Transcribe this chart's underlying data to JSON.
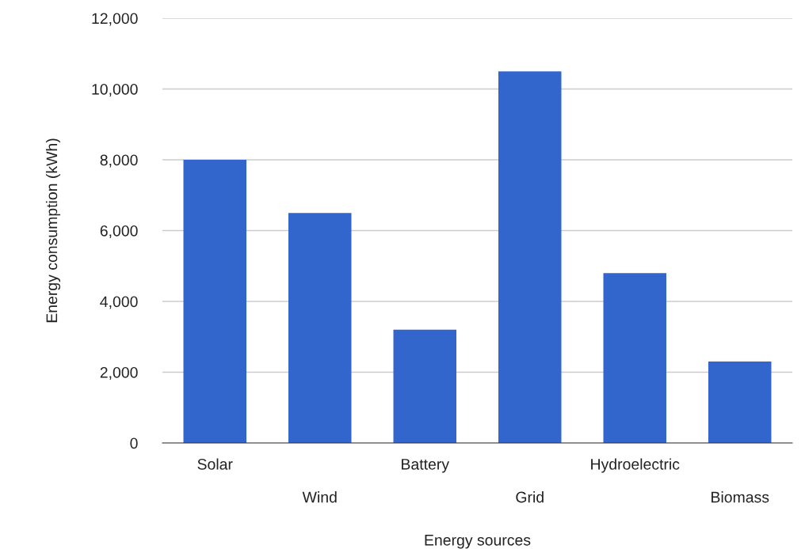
{
  "chart_data": {
    "type": "bar",
    "xlabel": "Energy sources",
    "ylabel": "Energy consumption (kWh)",
    "categories": [
      "Solar",
      "Wind",
      "Battery",
      "Grid",
      "Hydroelectric",
      "Biomass"
    ],
    "values": [
      8000,
      6500,
      3200,
      10500,
      4800,
      2300
    ],
    "color": "#3366cc",
    "ylim": [
      0,
      12000
    ],
    "yticks": [
      {
        "value": 0,
        "label": "0"
      },
      {
        "value": 2000,
        "label": "2,000"
      },
      {
        "value": 4000,
        "label": "4,000"
      },
      {
        "value": 6000,
        "label": "6,000"
      },
      {
        "value": 8000,
        "label": "8,000"
      },
      {
        "value": 10000,
        "label": "10,000"
      },
      {
        "value": 12000,
        "label": "12,000"
      }
    ],
    "grid": "y",
    "legend": false
  }
}
